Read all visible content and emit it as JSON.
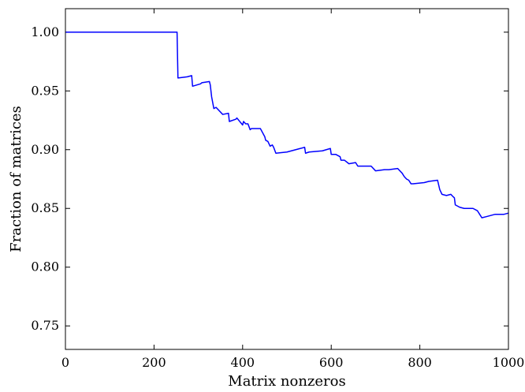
{
  "chart_data": {
    "type": "line",
    "title": "",
    "xlabel": "Matrix nonzeros",
    "ylabel": "Fraction of matrices",
    "xlim": [
      0,
      1000
    ],
    "ylim": [
      0.73,
      1.02
    ],
    "grid": false,
    "x_ticks": [
      0,
      200,
      400,
      600,
      800,
      1000
    ],
    "x_tick_labels": [
      "0",
      "200",
      "400",
      "600",
      "800",
      "1000"
    ],
    "y_ticks": [
      0.75,
      0.8,
      0.85,
      0.9,
      0.95,
      1.0
    ],
    "y_tick_labels": [
      "0.75",
      "0.80",
      "0.85",
      "0.90",
      "0.95",
      "1.00"
    ],
    "series": [
      {
        "color": "#0000ff",
        "x": [
          0,
          252,
          253,
          254,
          275,
          285,
          287,
          305,
          308,
          325,
          327,
          330,
          335,
          340,
          355,
          368,
          370,
          385,
          387,
          400,
          402,
          407,
          412,
          417,
          420,
          440,
          450,
          452,
          457,
          462,
          467,
          470,
          475,
          500,
          530,
          540,
          542,
          550,
          580,
          598,
          600,
          610,
          620,
          622,
          630,
          640,
          655,
          660,
          670,
          680,
          690,
          700,
          720,
          730,
          750,
          760,
          765,
          770,
          775,
          780,
          785,
          810,
          820,
          840,
          845,
          850,
          860,
          870,
          875,
          878,
          880,
          890,
          900,
          920,
          930,
          935,
          940,
          950,
          960,
          970,
          990,
          1000
        ],
        "y": [
          1.0,
          1.0,
          0.98,
          0.961,
          0.962,
          0.963,
          0.954,
          0.956,
          0.957,
          0.958,
          0.955,
          0.945,
          0.935,
          0.936,
          0.93,
          0.931,
          0.924,
          0.926,
          0.927,
          0.921,
          0.924,
          0.922,
          0.922,
          0.917,
          0.918,
          0.918,
          0.911,
          0.908,
          0.907,
          0.903,
          0.904,
          0.902,
          0.897,
          0.898,
          0.901,
          0.902,
          0.897,
          0.898,
          0.899,
          0.901,
          0.896,
          0.896,
          0.894,
          0.891,
          0.891,
          0.888,
          0.889,
          0.886,
          0.886,
          0.886,
          0.886,
          0.882,
          0.883,
          0.883,
          0.884,
          0.88,
          0.877,
          0.875,
          0.874,
          0.871,
          0.871,
          0.872,
          0.873,
          0.874,
          0.866,
          0.862,
          0.861,
          0.862,
          0.86,
          0.859,
          0.853,
          0.851,
          0.85,
          0.85,
          0.848,
          0.845,
          0.842,
          0.843,
          0.844,
          0.845,
          0.845,
          0.846
        ]
      }
    ]
  }
}
